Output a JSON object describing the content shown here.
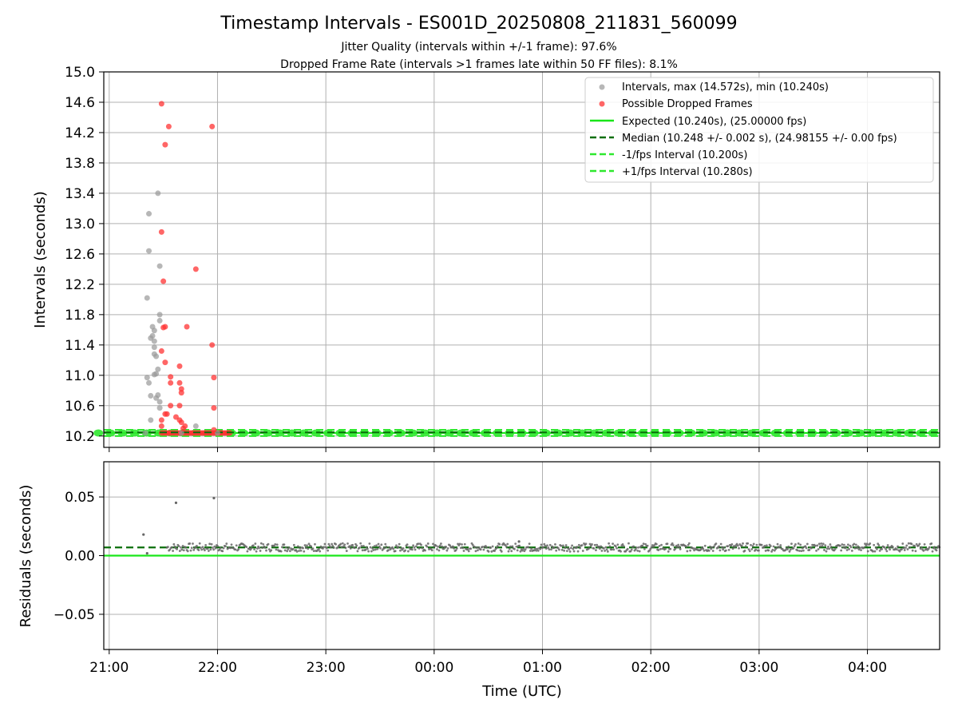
{
  "title": "Timestamp Intervals - ES001D_20250808_211831_560099",
  "subtitle_lines": [
    "Jitter Quality (intervals within +/-1 frame): 97.6%",
    "Dropped Frame Rate (intervals >1 frames late within 50 FF files): 8.1%"
  ],
  "colors": {
    "intervals": "#999999",
    "dropped": "#ff3333",
    "expected": "#19e619",
    "median": "#0a6e0a",
    "band": "#2ee82e",
    "grid": "#b0b0b0",
    "residual_points": "#666666"
  },
  "chart_data": [
    {
      "type": "scatter",
      "ylabel": "Intervals (seconds)",
      "ylim": [
        10.05,
        15.0
      ],
      "yticks": [
        "10.2",
        "10.6",
        "11.0",
        "11.4",
        "11.8",
        "12.2",
        "12.6",
        "13.0",
        "13.4",
        "13.8",
        "14.2",
        "14.6",
        "15.0"
      ],
      "grid": true,
      "legend_position": "top-right",
      "series": [
        {
          "name": "Intervals, max (14.572s), min (10.240s)",
          "marker": "circle",
          "points": [
            {
              "x": "21:21",
              "y": 12.02
            },
            {
              "x": "21:22",
              "y": 13.13
            },
            {
              "x": "21:22",
              "y": 12.64
            },
            {
              "x": "21:21",
              "y": 10.97
            },
            {
              "x": "21:22",
              "y": 10.9
            },
            {
              "x": "21:23",
              "y": 10.73
            },
            {
              "x": "21:23",
              "y": 10.41
            },
            {
              "x": "21:23",
              "y": 11.49
            },
            {
              "x": "21:24",
              "y": 11.52
            },
            {
              "x": "21:24",
              "y": 11.64
            },
            {
              "x": "21:25",
              "y": 11.59
            },
            {
              "x": "21:25",
              "y": 11.45
            },
            {
              "x": "21:25",
              "y": 11.37
            },
            {
              "x": "21:25",
              "y": 11.28
            },
            {
              "x": "21:26",
              "y": 11.25
            },
            {
              "x": "21:25",
              "y": 11.01
            },
            {
              "x": "21:26",
              "y": 11.02
            },
            {
              "x": "21:27",
              "y": 11.08
            },
            {
              "x": "21:26",
              "y": 10.7
            },
            {
              "x": "21:27",
              "y": 10.74
            },
            {
              "x": "21:28",
              "y": 10.65
            },
            {
              "x": "21:28",
              "y": 10.57
            },
            {
              "x": "21:27",
              "y": 13.4
            },
            {
              "x": "21:28",
              "y": 12.44
            },
            {
              "x": "21:28",
              "y": 11.8
            },
            {
              "x": "21:28",
              "y": 11.72
            },
            {
              "x": "21:48",
              "y": 10.33
            },
            {
              "x": "21:20",
              "y": 10.24
            },
            {
              "x": "21:40",
              "y": 10.24
            },
            {
              "x": "22:00",
              "y": 10.24
            }
          ]
        },
        {
          "name": "Possible Dropped Frames",
          "marker": "circle",
          "points": [
            {
              "x": "21:29",
              "y": 14.58
            },
            {
              "x": "21:33",
              "y": 14.28
            },
            {
              "x": "21:31",
              "y": 14.04
            },
            {
              "x": "21:29",
              "y": 12.89
            },
            {
              "x": "21:30",
              "y": 12.24
            },
            {
              "x": "21:30",
              "y": 11.63
            },
            {
              "x": "21:31",
              "y": 11.64
            },
            {
              "x": "21:29",
              "y": 11.32
            },
            {
              "x": "21:31",
              "y": 11.17
            },
            {
              "x": "21:34",
              "y": 10.98
            },
            {
              "x": "21:34",
              "y": 10.9
            },
            {
              "x": "21:31",
              "y": 10.49
            },
            {
              "x": "21:32",
              "y": 10.49
            },
            {
              "x": "21:29",
              "y": 10.41
            },
            {
              "x": "21:29",
              "y": 10.33
            },
            {
              "x": "21:34",
              "y": 10.6
            },
            {
              "x": "21:37",
              "y": 10.45
            },
            {
              "x": "21:39",
              "y": 10.41
            },
            {
              "x": "21:40",
              "y": 10.38
            },
            {
              "x": "21:39",
              "y": 10.6
            },
            {
              "x": "21:39",
              "y": 11.12
            },
            {
              "x": "21:39",
              "y": 10.9
            },
            {
              "x": "21:40",
              "y": 10.82
            },
            {
              "x": "21:40",
              "y": 10.77
            },
            {
              "x": "21:41",
              "y": 10.3
            },
            {
              "x": "21:42",
              "y": 10.33
            },
            {
              "x": "21:43",
              "y": 11.64
            },
            {
              "x": "21:48",
              "y": 12.4
            },
            {
              "x": "21:57",
              "y": 14.28
            },
            {
              "x": "21:57",
              "y": 11.4
            },
            {
              "x": "21:58",
              "y": 10.97
            },
            {
              "x": "21:58",
              "y": 10.57
            },
            {
              "x": "21:58",
              "y": 10.28
            }
          ]
        }
      ],
      "lines": [
        {
          "name": "Expected (10.240s), (25.00000 fps)",
          "y": 10.24,
          "style": "solid"
        },
        {
          "name": "Median (10.248 +/- 0.002 s), (24.98155 +/- 0.00 fps)",
          "y": 10.248,
          "style": "dashed"
        },
        {
          "name": "-1/fps Interval (10.200s)",
          "y": 10.2,
          "style": "dashed"
        },
        {
          "name": "+1/fps Interval (10.280s)",
          "y": 10.28,
          "style": "dashed"
        }
      ]
    },
    {
      "type": "scatter",
      "xlabel": "Time (UTC)",
      "ylabel": "Residuals (seconds)",
      "ylim": [
        -0.08,
        0.08
      ],
      "yticks": [
        "−0.05",
        "0.00",
        "0.05"
      ],
      "xticks": [
        "21:00",
        "22:00",
        "23:00",
        "00:00",
        "01:00",
        "02:00",
        "03:00",
        "04:00"
      ],
      "xrange": [
        "20:57",
        "04:40"
      ],
      "grid": true,
      "outliers": [
        {
          "x": "21:19",
          "y": 0.018
        },
        {
          "x": "21:21",
          "y": 0.002
        },
        {
          "x": "21:37",
          "y": 0.045
        },
        {
          "x": "21:58",
          "y": 0.049
        },
        {
          "x": "00:47",
          "y": 0.012
        }
      ],
      "baseline_residual": 0.007,
      "lines": [
        {
          "name": "Median residual",
          "y": 0.007,
          "style": "dashed"
        },
        {
          "name": "Expected",
          "y": 0.0,
          "style": "solid"
        }
      ]
    }
  ]
}
